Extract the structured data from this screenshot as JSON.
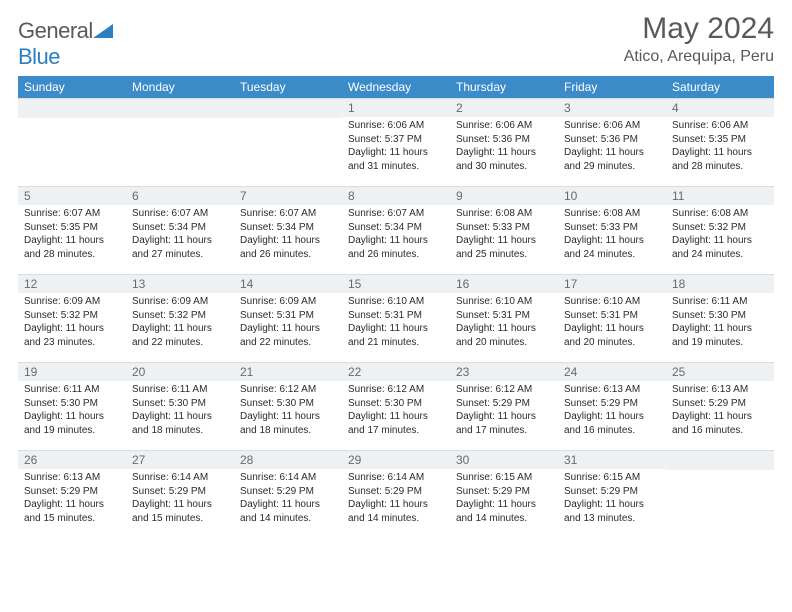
{
  "logo": {
    "part1": "General",
    "part2": "Blue"
  },
  "title": "May 2024",
  "location": "Atico, Arequipa, Peru",
  "colors": {
    "header_bg": "#3b8bc9",
    "header_text": "#ffffff",
    "daynum_bg": "#eef1f3",
    "daynum_text": "#646b72",
    "body_text": "#2b2b2b",
    "title_text": "#595959",
    "logo_gray": "#5a5a5a",
    "logo_blue": "#2d7fc1"
  },
  "daynames": [
    "Sunday",
    "Monday",
    "Tuesday",
    "Wednesday",
    "Thursday",
    "Friday",
    "Saturday"
  ],
  "weeks": [
    [
      {
        "n": "",
        "lines": []
      },
      {
        "n": "",
        "lines": []
      },
      {
        "n": "",
        "lines": []
      },
      {
        "n": "1",
        "lines": [
          "Sunrise: 6:06 AM",
          "Sunset: 5:37 PM",
          "Daylight: 11 hours",
          "and 31 minutes."
        ]
      },
      {
        "n": "2",
        "lines": [
          "Sunrise: 6:06 AM",
          "Sunset: 5:36 PM",
          "Daylight: 11 hours",
          "and 30 minutes."
        ]
      },
      {
        "n": "3",
        "lines": [
          "Sunrise: 6:06 AM",
          "Sunset: 5:36 PM",
          "Daylight: 11 hours",
          "and 29 minutes."
        ]
      },
      {
        "n": "4",
        "lines": [
          "Sunrise: 6:06 AM",
          "Sunset: 5:35 PM",
          "Daylight: 11 hours",
          "and 28 minutes."
        ]
      }
    ],
    [
      {
        "n": "5",
        "lines": [
          "Sunrise: 6:07 AM",
          "Sunset: 5:35 PM",
          "Daylight: 11 hours",
          "and 28 minutes."
        ]
      },
      {
        "n": "6",
        "lines": [
          "Sunrise: 6:07 AM",
          "Sunset: 5:34 PM",
          "Daylight: 11 hours",
          "and 27 minutes."
        ]
      },
      {
        "n": "7",
        "lines": [
          "Sunrise: 6:07 AM",
          "Sunset: 5:34 PM",
          "Daylight: 11 hours",
          "and 26 minutes."
        ]
      },
      {
        "n": "8",
        "lines": [
          "Sunrise: 6:07 AM",
          "Sunset: 5:34 PM",
          "Daylight: 11 hours",
          "and 26 minutes."
        ]
      },
      {
        "n": "9",
        "lines": [
          "Sunrise: 6:08 AM",
          "Sunset: 5:33 PM",
          "Daylight: 11 hours",
          "and 25 minutes."
        ]
      },
      {
        "n": "10",
        "lines": [
          "Sunrise: 6:08 AM",
          "Sunset: 5:33 PM",
          "Daylight: 11 hours",
          "and 24 minutes."
        ]
      },
      {
        "n": "11",
        "lines": [
          "Sunrise: 6:08 AM",
          "Sunset: 5:32 PM",
          "Daylight: 11 hours",
          "and 24 minutes."
        ]
      }
    ],
    [
      {
        "n": "12",
        "lines": [
          "Sunrise: 6:09 AM",
          "Sunset: 5:32 PM",
          "Daylight: 11 hours",
          "and 23 minutes."
        ]
      },
      {
        "n": "13",
        "lines": [
          "Sunrise: 6:09 AM",
          "Sunset: 5:32 PM",
          "Daylight: 11 hours",
          "and 22 minutes."
        ]
      },
      {
        "n": "14",
        "lines": [
          "Sunrise: 6:09 AM",
          "Sunset: 5:31 PM",
          "Daylight: 11 hours",
          "and 22 minutes."
        ]
      },
      {
        "n": "15",
        "lines": [
          "Sunrise: 6:10 AM",
          "Sunset: 5:31 PM",
          "Daylight: 11 hours",
          "and 21 minutes."
        ]
      },
      {
        "n": "16",
        "lines": [
          "Sunrise: 6:10 AM",
          "Sunset: 5:31 PM",
          "Daylight: 11 hours",
          "and 20 minutes."
        ]
      },
      {
        "n": "17",
        "lines": [
          "Sunrise: 6:10 AM",
          "Sunset: 5:31 PM",
          "Daylight: 11 hours",
          "and 20 minutes."
        ]
      },
      {
        "n": "18",
        "lines": [
          "Sunrise: 6:11 AM",
          "Sunset: 5:30 PM",
          "Daylight: 11 hours",
          "and 19 minutes."
        ]
      }
    ],
    [
      {
        "n": "19",
        "lines": [
          "Sunrise: 6:11 AM",
          "Sunset: 5:30 PM",
          "Daylight: 11 hours",
          "and 19 minutes."
        ]
      },
      {
        "n": "20",
        "lines": [
          "Sunrise: 6:11 AM",
          "Sunset: 5:30 PM",
          "Daylight: 11 hours",
          "and 18 minutes."
        ]
      },
      {
        "n": "21",
        "lines": [
          "Sunrise: 6:12 AM",
          "Sunset: 5:30 PM",
          "Daylight: 11 hours",
          "and 18 minutes."
        ]
      },
      {
        "n": "22",
        "lines": [
          "Sunrise: 6:12 AM",
          "Sunset: 5:30 PM",
          "Daylight: 11 hours",
          "and 17 minutes."
        ]
      },
      {
        "n": "23",
        "lines": [
          "Sunrise: 6:12 AM",
          "Sunset: 5:29 PM",
          "Daylight: 11 hours",
          "and 17 minutes."
        ]
      },
      {
        "n": "24",
        "lines": [
          "Sunrise: 6:13 AM",
          "Sunset: 5:29 PM",
          "Daylight: 11 hours",
          "and 16 minutes."
        ]
      },
      {
        "n": "25",
        "lines": [
          "Sunrise: 6:13 AM",
          "Sunset: 5:29 PM",
          "Daylight: 11 hours",
          "and 16 minutes."
        ]
      }
    ],
    [
      {
        "n": "26",
        "lines": [
          "Sunrise: 6:13 AM",
          "Sunset: 5:29 PM",
          "Daylight: 11 hours",
          "and 15 minutes."
        ]
      },
      {
        "n": "27",
        "lines": [
          "Sunrise: 6:14 AM",
          "Sunset: 5:29 PM",
          "Daylight: 11 hours",
          "and 15 minutes."
        ]
      },
      {
        "n": "28",
        "lines": [
          "Sunrise: 6:14 AM",
          "Sunset: 5:29 PM",
          "Daylight: 11 hours",
          "and 14 minutes."
        ]
      },
      {
        "n": "29",
        "lines": [
          "Sunrise: 6:14 AM",
          "Sunset: 5:29 PM",
          "Daylight: 11 hours",
          "and 14 minutes."
        ]
      },
      {
        "n": "30",
        "lines": [
          "Sunrise: 6:15 AM",
          "Sunset: 5:29 PM",
          "Daylight: 11 hours",
          "and 14 minutes."
        ]
      },
      {
        "n": "31",
        "lines": [
          "Sunrise: 6:15 AM",
          "Sunset: 5:29 PM",
          "Daylight: 11 hours",
          "and 13 minutes."
        ]
      },
      {
        "n": "",
        "lines": []
      }
    ]
  ]
}
